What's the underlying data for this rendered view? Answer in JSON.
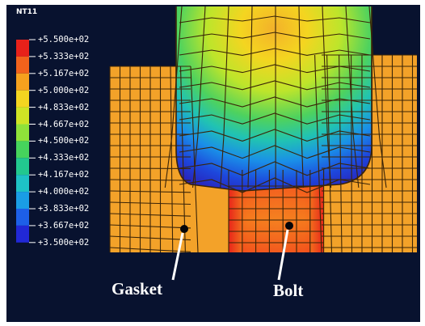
{
  "legend": {
    "title": "NT11",
    "labels": [
      "+5.500e+02",
      "+5.333e+02",
      "+5.167e+02",
      "+5.000e+02",
      "+4.833e+02",
      "+4.667e+02",
      "+4.500e+02",
      "+4.333e+02",
      "+4.167e+02",
      "+4.000e+02",
      "+3.833e+02",
      "+3.667e+02",
      "+3.500e+02"
    ],
    "colors": [
      "#e8211a",
      "#f2621c",
      "#f6a11e",
      "#f4d520",
      "#cfe425",
      "#8fe23a",
      "#46d35c",
      "#22c88f",
      "#1ec2c6",
      "#1a9de6",
      "#1d5fe8",
      "#2128d6"
    ]
  },
  "annotations": {
    "gasket": "Gasket",
    "bolt": "Bolt"
  },
  "colors": {
    "background": "#08122f",
    "gasket_fill": "#f3a229",
    "mesh_line": "#3a2408"
  }
}
